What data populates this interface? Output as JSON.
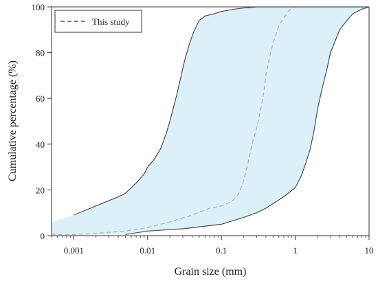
{
  "chart_data": {
    "type": "area",
    "title": "",
    "xlabel": "Grain size (mm)",
    "ylabel": "Cumulative percentage (%)",
    "x_scale": "log",
    "xlim": [
      0.0005,
      10
    ],
    "ylim": [
      0,
      100
    ],
    "x_ticks": [
      0.001,
      0.01,
      0.1,
      1,
      10
    ],
    "x_tick_labels": [
      "0.001",
      "0.01",
      "0.1",
      "1",
      "10"
    ],
    "y_ticks": [
      0,
      20,
      40,
      60,
      80,
      100
    ],
    "y_tick_labels": [
      "0",
      "20",
      "40",
      "60",
      "80",
      "100"
    ],
    "grid": false,
    "legend": {
      "position": "top-left",
      "entries": [
        "This study"
      ]
    },
    "band_color": "#dcf0f9",
    "bound_color": "#4a4a4a",
    "series_color": "#a8b4bc",
    "envelope_upper": {
      "x": [
        0.0005,
        0.001,
        0.002,
        0.004,
        0.005,
        0.007,
        0.009,
        0.01,
        0.012,
        0.015,
        0.018,
        0.02,
        0.022,
        0.025,
        0.028,
        0.032,
        0.037,
        0.042,
        0.05,
        0.06,
        0.08,
        0.1,
        0.15,
        0.2,
        0.3,
        10
      ],
      "y": [
        6,
        9,
        13,
        17,
        18.5,
        23,
        27,
        30,
        33,
        38,
        45,
        50,
        55,
        62,
        69,
        77,
        84,
        89,
        94,
        96,
        97,
        98,
        99,
        99.5,
        100,
        100
      ]
    },
    "envelope_lower": {
      "x": [
        0.0005,
        0.001,
        0.005,
        0.01,
        0.03,
        0.1,
        0.2,
        0.3,
        0.4,
        0.5,
        0.7,
        1.0,
        1.2,
        1.4,
        1.6,
        1.8,
        2.0,
        2.3,
        2.7,
        3.0,
        4.0,
        5.0,
        6.0,
        8.0,
        9.0,
        10
      ],
      "y": [
        0,
        0,
        0.5,
        2,
        3,
        5,
        8,
        10,
        12,
        14,
        17,
        21,
        26,
        32,
        38,
        46,
        55,
        64,
        73,
        80,
        90,
        94,
        97,
        99,
        99.5,
        100
      ]
    },
    "series": [
      {
        "name": "This study",
        "style": "dashed",
        "x": [
          0.0005,
          0.001,
          0.002,
          0.005,
          0.01,
          0.02,
          0.04,
          0.07,
          0.1,
          0.14,
          0.17,
          0.2,
          0.23,
          0.26,
          0.3,
          0.34,
          0.38,
          0.4,
          0.45,
          0.5,
          0.55,
          0.6,
          0.7,
          0.8,
          0.9,
          1.0
        ],
        "y": [
          0.5,
          0.5,
          1,
          2,
          3.5,
          6,
          9,
          12,
          13,
          15,
          18,
          24,
          32,
          40,
          47,
          55,
          64,
          70,
          78,
          84,
          88,
          92,
          95,
          98,
          99.5,
          100
        ]
      }
    ]
  }
}
